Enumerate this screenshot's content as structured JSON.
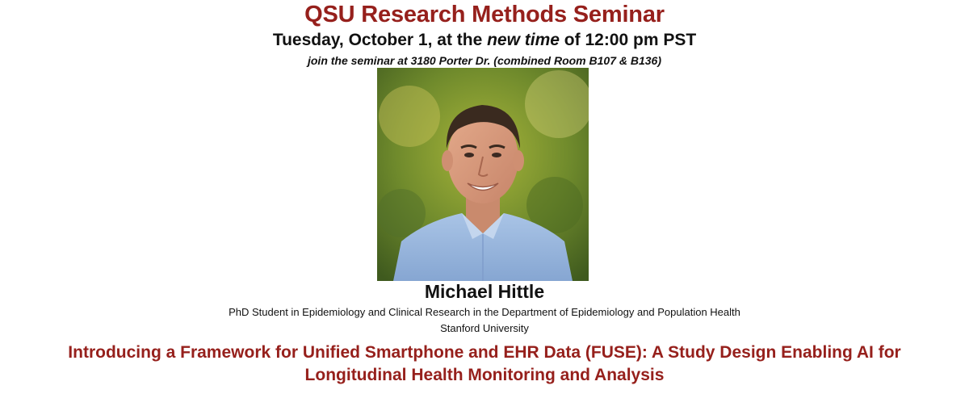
{
  "seminar": {
    "title": "QSU Research Methods Seminar",
    "date_prefix": "Tuesday, October 1, at the ",
    "date_emphasis": "new time",
    "date_suffix": " of 12:00 pm PST",
    "location": "join the seminar at 3180 Porter Dr. (combined Room B107 & B136)"
  },
  "speaker": {
    "name": "Michael Hittle",
    "role": "PhD Student in Epidemiology and Clinical Research in the Department of Epidemiology and Population Health",
    "institution": "Stanford University"
  },
  "talk": {
    "title_line1": "Introducing a Framework for Unified Smartphone and EHR Data (FUSE): A Study Design Enabling AI for",
    "title_line2": "Longitudinal Health Monitoring and Analysis"
  },
  "colors": {
    "accent": "#96201c",
    "text": "#111111"
  }
}
